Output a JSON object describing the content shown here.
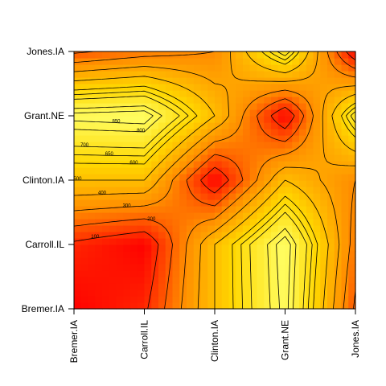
{
  "chart_data": {
    "type": "heatmap",
    "title": "",
    "xlabel": "",
    "ylabel": "",
    "x_categories": [
      "Bremer.IA",
      "Carroll.IL",
      "Clinton.IA",
      "Grant.NE",
      "Jones.IA"
    ],
    "y_categories": [
      "Bremer.IA",
      "Carroll.IL",
      "Clinton.IA",
      "Grant.NE",
      "Jones.IA"
    ],
    "values": [
      [
        0,
        80,
        500,
        880,
        180
      ],
      [
        80,
        0,
        500,
        900,
        250
      ],
      [
        500,
        500,
        0,
        500,
        300
      ],
      [
        880,
        900,
        500,
        0,
        750
      ],
      [
        180,
        250,
        300,
        750,
        0
      ]
    ],
    "color_scale": [
      "#ff0000",
      "#ff8c00",
      "#ffd700",
      "#ffff66"
    ],
    "contour_labels": [
      "100",
      "200",
      "300",
      "400",
      "500",
      "600",
      "650",
      "700",
      "800",
      "850",
      "900"
    ],
    "legend": "none",
    "grid": false
  }
}
